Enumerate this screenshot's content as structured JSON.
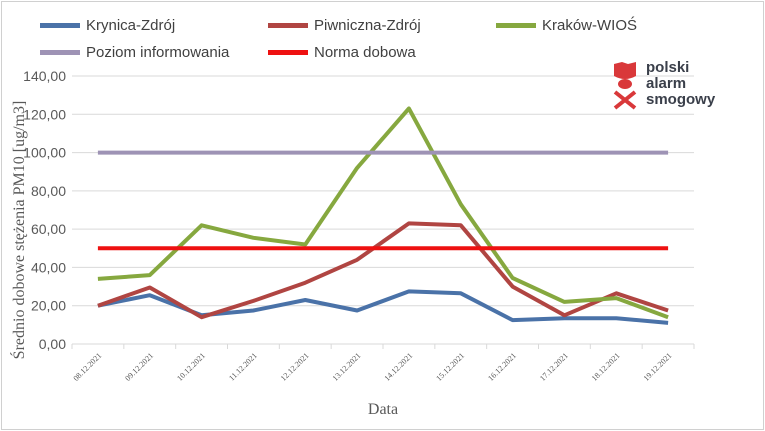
{
  "chart_data": {
    "type": "line",
    "xlabel": "Data",
    "ylabel": "Średnio dobowe stężenia PM10 [ug/m3]",
    "ylim": [
      0,
      140
    ],
    "yticks": [
      "0,00",
      "20,00",
      "40,00",
      "60,00",
      "80,00",
      "100,00",
      "120,00",
      "140,00"
    ],
    "grid": true,
    "legend_position": "top",
    "categories": [
      "08.12.2021",
      "09.12.2021",
      "10.12.2021",
      "11.12.2021",
      "12.12.2021",
      "13.12.2021",
      "14.12.2021",
      "15.12.2021",
      "16.12.2021",
      "17.12.2021",
      "18.12.2021",
      "19.12.2021"
    ],
    "series": [
      {
        "name": "Krynica-Zdrój",
        "color": "#4a72a8",
        "values": [
          20,
          25.5,
          15,
          17.5,
          23,
          17.5,
          27.5,
          26.5,
          12.5,
          13.5,
          13.5,
          11
        ]
      },
      {
        "name": "Piwniczna-Zdrój",
        "color": "#b04542",
        "values": [
          20,
          29.5,
          14,
          22.5,
          32,
          44,
          63,
          62,
          30,
          15,
          26.5,
          17.5
        ]
      },
      {
        "name": "Kraków-WIOŚ",
        "color": "#86a83f",
        "values": [
          34,
          36,
          62,
          55.5,
          52,
          92,
          123,
          73,
          34.5,
          22,
          24,
          14
        ]
      },
      {
        "name": "Poziom informowania",
        "color": "#9e93b5",
        "values": [
          100,
          100,
          100,
          100,
          100,
          100,
          100,
          100,
          100,
          100,
          100,
          100
        ]
      },
      {
        "name": "Norma dobowa",
        "color": "#ee1111",
        "values": [
          50,
          50,
          50,
          50,
          50,
          50,
          50,
          50,
          50,
          50,
          50,
          50
        ]
      }
    ]
  },
  "logo": {
    "text": [
      "polski",
      "alarm",
      "smogowy"
    ],
    "color": "#d9383a"
  }
}
